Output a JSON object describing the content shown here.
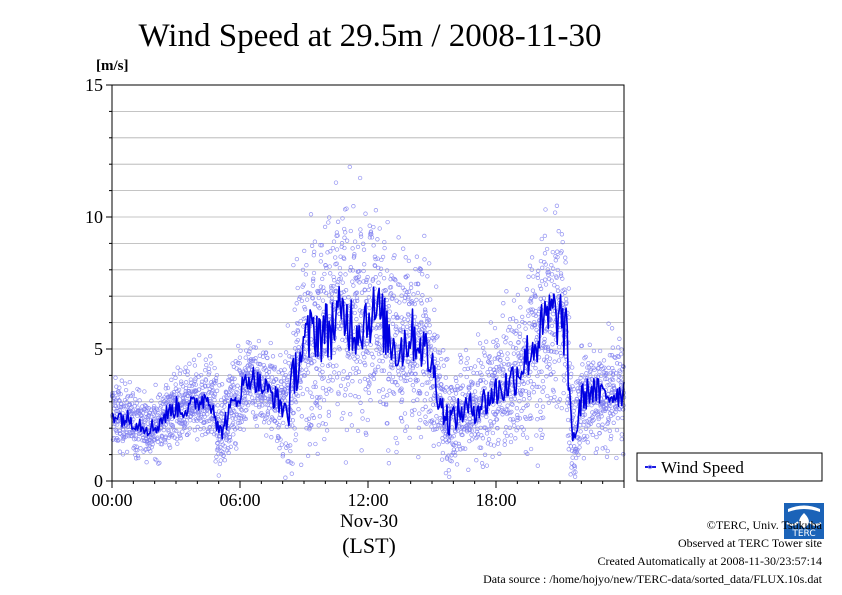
{
  "chart_data": {
    "type": "scatter",
    "title": "Wind Speed at 29.5m / 2008-11-30",
    "ylabel": "[m/s]",
    "xlabel": "(LST)",
    "date_label": "Nov-30",
    "ylim": [
      0,
      15
    ],
    "xlim_hours": [
      0,
      24
    ],
    "y_ticks": [
      "0",
      "5",
      "10",
      "15"
    ],
    "x_ticks": [
      "00:00",
      "06:00",
      "12:00",
      "18:00"
    ],
    "grid": true,
    "legend": {
      "position": "right",
      "entries": [
        "Wind Speed"
      ]
    },
    "colors": {
      "line": "#0000e0",
      "points": "#8080f0"
    },
    "series": [
      {
        "name": "Wind Speed",
        "hours": [
          0,
          0.5,
          1,
          1.5,
          2,
          2.5,
          3,
          3.5,
          4,
          4.5,
          4.8,
          5,
          5.5,
          6,
          6.5,
          7,
          7.5,
          8,
          8.3,
          8.5,
          9,
          9.5,
          10,
          10.5,
          11,
          11.5,
          12,
          12.5,
          13,
          13.5,
          14,
          14.5,
          15,
          15.5,
          15.8,
          16,
          16.5,
          17,
          17.5,
          18,
          18.5,
          19,
          19.5,
          20,
          20.5,
          21,
          21.3,
          21.5,
          21.7,
          22,
          22.5,
          23,
          23.5,
          24
        ],
        "values": [
          2.6,
          2.4,
          2.3,
          2.1,
          2.0,
          2.5,
          2.8,
          2.7,
          3.0,
          3.2,
          2.8,
          1.7,
          2.6,
          3.4,
          4.0,
          3.6,
          3.3,
          2.8,
          2.7,
          4.0,
          5.1,
          5.8,
          5.6,
          6.1,
          6.2,
          5.8,
          6.3,
          6.4,
          5.4,
          5.0,
          5.6,
          5.2,
          4.4,
          2.7,
          2.3,
          2.4,
          2.7,
          2.8,
          3.0,
          3.4,
          3.6,
          4.1,
          4.8,
          5.4,
          6.3,
          6.2,
          5.5,
          2.4,
          1.6,
          3.1,
          3.5,
          3.2,
          3.3,
          3.4
        ],
        "spread": [
          0.8,
          0.8,
          0.8,
          0.8,
          0.8,
          0.8,
          0.9,
          0.9,
          0.9,
          1.0,
          1.0,
          1.0,
          1.0,
          1.1,
          1.1,
          1.1,
          1.1,
          1.2,
          1.5,
          2.0,
          2.3,
          2.6,
          2.8,
          2.8,
          2.8,
          2.6,
          2.6,
          2.6,
          2.5,
          2.4,
          2.3,
          2.2,
          1.8,
          1.5,
          1.3,
          1.3,
          1.3,
          1.4,
          1.5,
          1.5,
          1.6,
          1.8,
          2.1,
          2.4,
          2.6,
          2.6,
          2.4,
          1.6,
          1.3,
          1.3,
          1.3,
          1.3,
          1.3,
          1.3
        ]
      }
    ]
  },
  "credits": {
    "org": "©TERC, Univ. Tsukuba",
    "site": "Observed at TERC Tower site",
    "created": "Created Automatically at 2008-11-30/23:57:14",
    "source": "Data source : /home/hojyo/new/TERC-data/sorted_data/FLUX.10s.dat"
  },
  "logo": {
    "label": "TERC"
  }
}
